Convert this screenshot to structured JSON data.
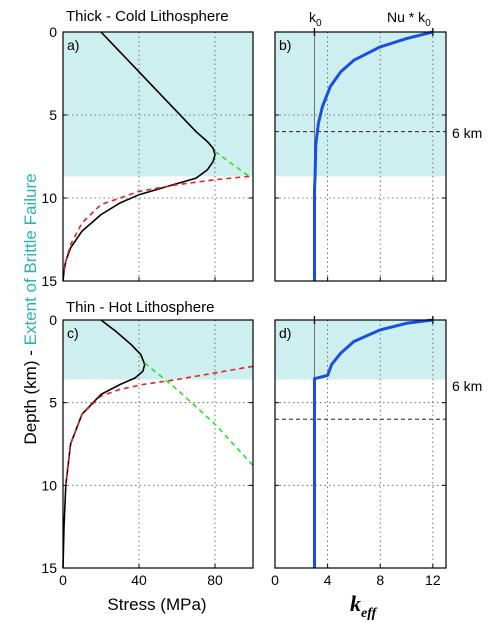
{
  "colors": {
    "brittle_fill": "#cdeff0",
    "accent_cyan": "#2ab3b7",
    "envelope": "#000000",
    "brittle_line": "#2ee02e",
    "ductile_line": "#e52222",
    "keff_line": "#1a50e0",
    "grid": "#555555"
  },
  "figure": {
    "ylabel_part1": "Depth (km) - ",
    "ylabel_part2": "Extent of Brittle Failure",
    "top_title": "Thick - Cold Lithosphere",
    "bottom_title": "Thin - Hot Lithosphere",
    "xlabel_stress": "Stress (MPa)",
    "xlabel_keff_main": "k",
    "xlabel_keff_sub": "eff",
    "k0_main": "k",
    "k0_sub": "0",
    "nuk0": "Nu * k",
    "nuk0_sub": "0",
    "six_km_top": "6 km",
    "six_km_bottom": "6 km"
  },
  "chart_data": [
    {
      "panel_label": "a)",
      "type": "line",
      "xlim": [
        0,
        100
      ],
      "ylim": [
        15,
        0
      ],
      "xticks": [
        0,
        40,
        80
      ],
      "yticks": [
        0,
        5,
        10,
        15
      ],
      "grid": true,
      "brittle_extent_km": 8.7,
      "series": [
        {
          "role": "strength-envelope",
          "x": [
            20,
            30,
            40,
            50,
            60,
            70,
            76,
            79,
            80,
            79,
            76,
            70,
            55,
            40,
            30,
            20,
            10,
            4,
            1.5,
            0.5,
            0
          ],
          "y": [
            0,
            1.2,
            2.4,
            3.6,
            4.8,
            6.0,
            6.6,
            7.0,
            7.4,
            7.8,
            8.3,
            8.8,
            9.3,
            9.8,
            10.3,
            11.0,
            12.0,
            13.0,
            13.8,
            14.4,
            15
          ]
        },
        {
          "role": "brittle-dashed",
          "x": [
            80,
            98
          ],
          "y": [
            7.2,
            8.7
          ]
        },
        {
          "role": "ductile-dashed",
          "x": [
            98,
            80,
            60,
            40,
            20,
            10,
            4,
            1.5,
            0.5
          ],
          "y": [
            8.7,
            8.9,
            9.2,
            9.6,
            10.4,
            11.5,
            12.8,
            13.8,
            14.4
          ]
        }
      ]
    },
    {
      "panel_label": "b)",
      "type": "line",
      "xlim": [
        0,
        13
      ],
      "ylim": [
        15,
        0
      ],
      "xticks": [
        0,
        4,
        8,
        12
      ],
      "yticks": [
        0,
        5,
        10,
        15
      ],
      "grid": true,
      "brittle_extent_km": 8.7,
      "reference_depth_km": 6,
      "k0": 3,
      "nuk0": 12,
      "series": [
        {
          "role": "k-eff",
          "x": [
            12,
            10,
            8,
            6,
            5,
            4.2,
            3.6,
            3.3,
            3.1,
            3.05,
            3.0,
            3.0
          ],
          "y": [
            0,
            0.4,
            0.9,
            1.7,
            2.4,
            3.3,
            4.5,
            5.5,
            6.8,
            8.7,
            9.5,
            15
          ]
        }
      ]
    },
    {
      "panel_label": "c)",
      "type": "line",
      "xlim": [
        0,
        100
      ],
      "ylim": [
        15,
        0
      ],
      "xticks": [
        0,
        40,
        80
      ],
      "yticks": [
        0,
        5,
        10,
        15
      ],
      "grid": true,
      "brittle_extent_km": 3.6,
      "series": [
        {
          "role": "strength-envelope",
          "x": [
            20,
            28,
            36,
            41,
            43,
            42,
            38,
            30,
            20,
            10,
            4,
            1.5,
            0.5,
            0
          ],
          "y": [
            0,
            0.7,
            1.5,
            2.1,
            2.7,
            3.1,
            3.5,
            3.9,
            4.5,
            5.7,
            7.5,
            10.0,
            12.5,
            15
          ]
        },
        {
          "role": "brittle-dashed",
          "x": [
            43,
            60,
            80,
            100
          ],
          "y": [
            2.6,
            4.2,
            6.3,
            8.8
          ]
        },
        {
          "role": "ductile-dashed",
          "x": [
            100,
            80,
            60,
            42,
            30,
            20,
            10,
            4,
            1.5
          ],
          "y": [
            2.8,
            3.2,
            3.6,
            3.9,
            4.2,
            4.6,
            5.7,
            7.5,
            10.0
          ]
        }
      ]
    },
    {
      "panel_label": "d)",
      "type": "line",
      "xlim": [
        0,
        13
      ],
      "ylim": [
        15,
        0
      ],
      "xticks": [
        0,
        4,
        8,
        12
      ],
      "yticks": [
        0,
        5,
        10,
        15
      ],
      "grid": true,
      "brittle_extent_km": 3.6,
      "reference_depth_km": 6,
      "k0": 3,
      "nuk0": 12,
      "series": [
        {
          "role": "k-eff",
          "x": [
            12,
            10,
            8,
            6,
            5,
            4.3,
            4.0,
            3.5,
            3.0,
            3.0
          ],
          "y": [
            0,
            0.2,
            0.6,
            1.3,
            2.0,
            2.7,
            3.35,
            3.45,
            3.55,
            15
          ]
        }
      ]
    }
  ]
}
